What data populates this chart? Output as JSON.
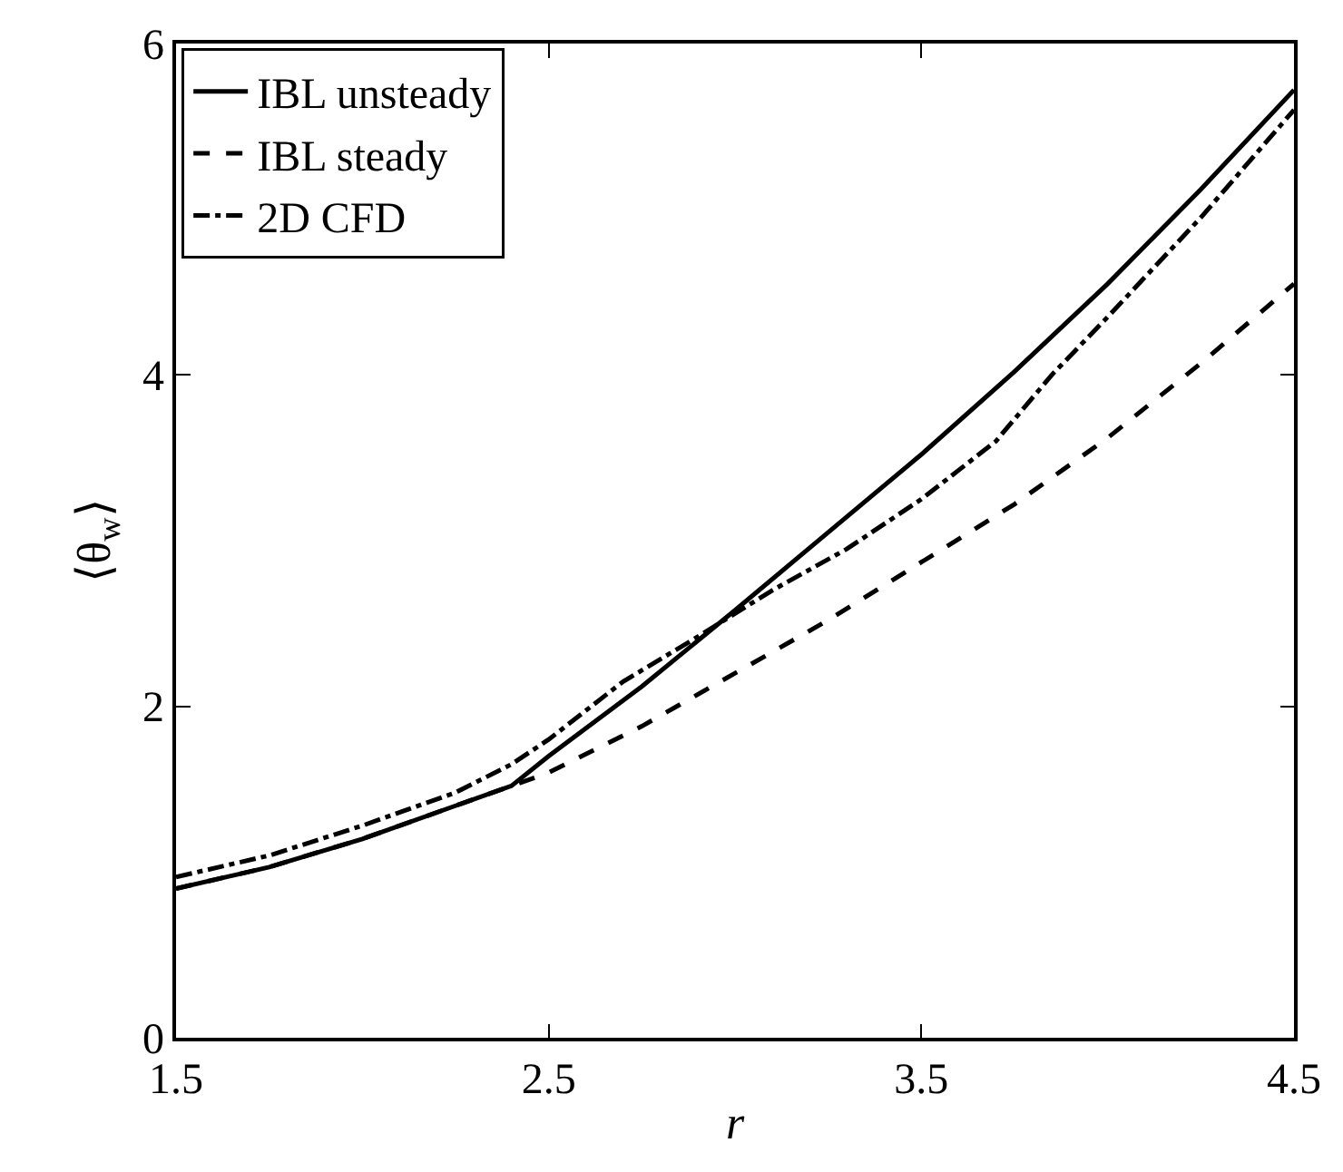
{
  "chart_data": {
    "type": "line",
    "xlabel": "r",
    "ylabel": "⟨θ$_{w}$⟩",
    "xlim": [
      1.5,
      4.5
    ],
    "ylim": [
      0,
      6
    ],
    "xticks": [
      1.5,
      2.5,
      3.5,
      4.5
    ],
    "yticks": [
      0,
      2,
      4,
      6
    ],
    "legend": "top left",
    "marker": "none",
    "series": [
      {
        "name": "IBL unsteady",
        "color": "#000000",
        "line_style": "solid",
        "x": [
          1.5,
          1.75,
          2.0,
          2.25,
          2.4,
          2.5,
          2.75,
          3.0,
          3.25,
          3.5,
          3.75,
          4.0,
          4.25,
          4.5
        ],
        "values": [
          0.9,
          1.03,
          1.2,
          1.4,
          1.52,
          1.7,
          2.12,
          2.58,
          3.05,
          3.52,
          4.02,
          4.55,
          5.12,
          5.72
        ]
      },
      {
        "name": "IBL steady",
        "color": "#000000",
        "line_style": "dashed",
        "x": [
          1.5,
          1.75,
          2.0,
          2.25,
          2.4,
          2.5,
          2.75,
          3.0,
          3.25,
          3.5,
          3.75,
          4.0,
          4.25,
          4.5
        ],
        "values": [
          0.9,
          1.03,
          1.2,
          1.4,
          1.52,
          1.6,
          1.88,
          2.2,
          2.52,
          2.87,
          3.22,
          3.62,
          4.07,
          4.55
        ]
      },
      {
        "name": "2D CFD",
        "color": "#000000",
        "line_style": "dashdot",
        "x": [
          1.5,
          1.75,
          2.0,
          2.25,
          2.4,
          2.5,
          2.7,
          2.9,
          3.1,
          3.3,
          3.5,
          3.7,
          3.85,
          4.0,
          4.25,
          4.5
        ],
        "values": [
          0.97,
          1.1,
          1.28,
          1.48,
          1.65,
          1.8,
          2.15,
          2.42,
          2.7,
          2.95,
          3.25,
          3.6,
          4.0,
          4.35,
          4.95,
          5.6
        ]
      }
    ]
  }
}
